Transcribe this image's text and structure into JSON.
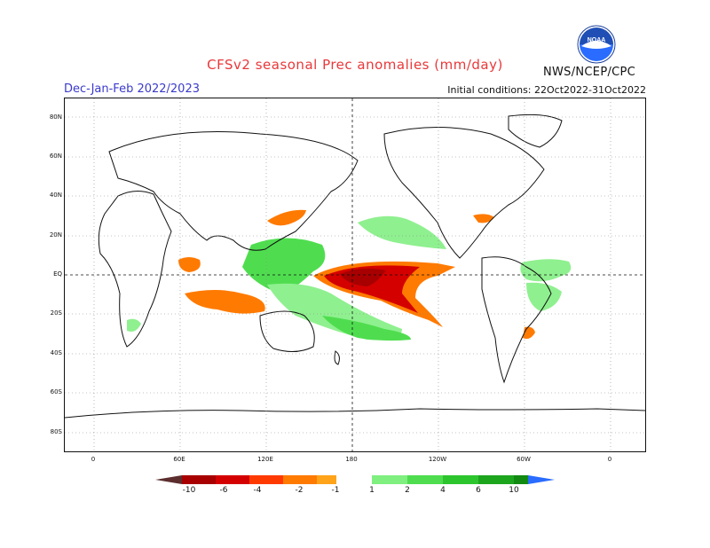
{
  "header": {
    "title": "CFSv2 seasonal Prec anomalies (mm/day)",
    "season": "Dec-Jan-Feb 2022/2023",
    "initial_conditions": "Initial conditions: 22Oct2022-31Oct2022",
    "agency": "NWS/NCEP/CPC"
  },
  "axes": {
    "lat_labels": [
      "80N",
      "60N",
      "40N",
      "20N",
      "EQ",
      "20S",
      "40S",
      "60S",
      "80S"
    ],
    "lon_labels": [
      "0",
      "60E",
      "120E",
      "180",
      "120W",
      "60W",
      "0"
    ]
  },
  "colorbar": {
    "labels": [
      "-10",
      "-6",
      "-4",
      "-2",
      "-1",
      "1",
      "2",
      "4",
      "6",
      "10"
    ],
    "colors": [
      "#5c2e2e",
      "#a80000",
      "#d40000",
      "#ff3a00",
      "#ff7a00",
      "#ffa31a",
      "#ffffff",
      "#7fef7f",
      "#4fdd4f",
      "#2dc52d",
      "#1ea51e",
      "#128a12",
      "#2a6cff"
    ]
  },
  "legend_colors": {
    "dry_strong": "#d40000",
    "dry": "#ff7a00",
    "wet": "#4fdd4f",
    "wet_light": "#8ff08f"
  }
}
